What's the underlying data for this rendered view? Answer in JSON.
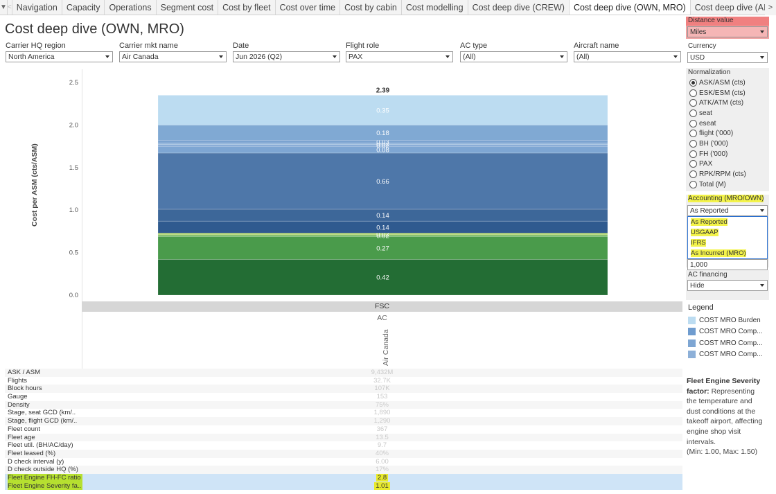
{
  "tabs": [
    "Navigation",
    "Capacity",
    "Operations",
    "Segment cost",
    "Cost by fleet",
    "Cost over time",
    "Cost by cabin",
    "Cost modelling",
    "Cost deep dive (CREW)",
    "Cost deep dive (OWN, MRO)",
    "Cost deep dive (AIRPORT)"
  ],
  "active_tab_index": 9,
  "page_title": "Cost deep dive (OWN, MRO)",
  "filters": [
    {
      "label": "Carrier HQ region",
      "value": "North America"
    },
    {
      "label": "Carrier mkt name",
      "value": "Air Canada"
    },
    {
      "label": "Date",
      "value": "Jun 2026 (Q2)"
    },
    {
      "label": "Flight role",
      "value": "PAX"
    },
    {
      "label": "AC type",
      "value": "(All)"
    },
    {
      "label": "Aircraft name",
      "value": "(All)"
    }
  ],
  "right_panel": {
    "distance_label": "Distance value",
    "distance_value": "Miles",
    "currency_label": "Currency",
    "currency_value": "USD",
    "normalization_label": "Normalization",
    "normalization_options": [
      "ASK/ASM (cts)",
      "ESK/ESM (cts)",
      "ATK/ATM (cts)",
      "seat",
      "eseat",
      "flight ('000)",
      "BH ('000)",
      "FH ('000)",
      "PAX",
      "RPK/RPM (cts)",
      "Total (M)"
    ],
    "normalization_selected": 0,
    "accounting_label": "Accounting (MRO/OWN)",
    "accounting_value": "As Reported",
    "accounting_options": [
      "As Reported",
      "USGAAP",
      "IFRS",
      "As Incurred (MRO)"
    ],
    "hidden_value": "1,000",
    "financing_label": "AC financing",
    "financing_value": "Hide",
    "legend_title": "Legend",
    "legend": [
      {
        "label": "COST MRO Burden",
        "color": "#bcdcf1"
      },
      {
        "label": "COST MRO Comp...",
        "color": "#6f9ccf"
      },
      {
        "label": "COST MRO Comp...",
        "color": "#7ea6d3"
      },
      {
        "label": "COST MRO Comp...",
        "color": "#8db0d8"
      }
    ],
    "desc_title": "Fleet Engine Severity factor:",
    "desc_body": "Representing the temperature and dust conditions at the takeoff airport, affecting engine shop visit intervals.",
    "desc_range": "(Min: 1.00, Max: 1.50)"
  },
  "chart_data": {
    "type": "bar",
    "stacked": true,
    "ylabel": "Cost per ASM (cts/ASM)",
    "ylim": [
      0,
      2.5
    ],
    "yticks": [
      "0.0",
      "0.5",
      "1.0",
      "1.5",
      "2.0",
      "2.5"
    ],
    "category_group": "FSC",
    "category_sub": "AC",
    "category": "Air Canada",
    "total_label": "2.39",
    "segments": [
      {
        "value": 0.42,
        "label": "0.42",
        "color": "#236d34"
      },
      {
        "value": 0.27,
        "label": "0.27",
        "color": "#4a9b4b"
      },
      {
        "value": 0.02,
        "label": "0.02",
        "color": "#80c06a"
      },
      {
        "value": 0.02,
        "label": "0.02",
        "color": "#a6cf5e"
      },
      {
        "value": 0.14,
        "label": "0.14",
        "color": "#2f5a8f"
      },
      {
        "value": 0.14,
        "label": "0.14",
        "color": "#3d6799"
      },
      {
        "value": 0.66,
        "label": "0.66",
        "color": "#4e77a9"
      },
      {
        "value": 0.08,
        "label": "0.08",
        "color": "#7ea6d3"
      },
      {
        "value": 0.02,
        "label": "0.02",
        "color": "#86aad6"
      },
      {
        "value": 0.02,
        "label": "0.02",
        "color": "#8bb0d8"
      },
      {
        "value": 0.03,
        "label": "0.03",
        "color": "#7ba3d0"
      },
      {
        "value": 0.18,
        "label": "0.18",
        "color": "#80a9d3"
      },
      {
        "value": 0.35,
        "label": "0.35",
        "color": "#bcdcf1"
      }
    ]
  },
  "metrics": [
    {
      "label": "ASK / ASM",
      "value": "9,432M"
    },
    {
      "label": "Flights",
      "value": "32.7K"
    },
    {
      "label": "Block hours",
      "value": "107K"
    },
    {
      "label": "Gauge",
      "value": "153"
    },
    {
      "label": "Density",
      "value": "75%"
    },
    {
      "label": "Stage, seat GCD (km/..",
      "value": "1,890"
    },
    {
      "label": "Stage, flight GCD (km/..",
      "value": "1,290"
    },
    {
      "label": "Fleet count",
      "value": "367"
    },
    {
      "label": "Fleet age",
      "value": "13.5"
    },
    {
      "label": "Fleet util. (BH/AC/day)",
      "value": "9.7"
    },
    {
      "label": "Fleet leased (%)",
      "value": "40%"
    },
    {
      "label": "D check interval (y)",
      "value": "6.00"
    },
    {
      "label": "D check outside HQ (%)",
      "value": "17%"
    },
    {
      "label": "Fleet Engine FH-FC ratio",
      "value": "2.8",
      "highlight": true
    },
    {
      "label": "Fleet Engine Severity fa..",
      "value": "1.01",
      "highlight": true
    }
  ]
}
